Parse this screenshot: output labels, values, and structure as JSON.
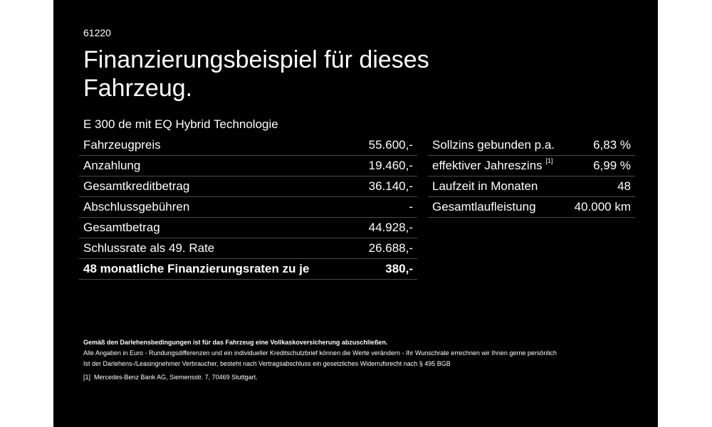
{
  "header": {
    "code": "61220",
    "title": "Finanzierungsbeispiel für dieses Fahrzeug.",
    "subtitle": "E 300 de mit EQ Hybrid Technologie"
  },
  "left_table": [
    {
      "label": "Fahrzeugpreis",
      "value": "55.600,-"
    },
    {
      "label": "Anzahlung",
      "value": "19.460,-"
    },
    {
      "label": "Gesamtkreditbetrag",
      "value": "36.140,-"
    },
    {
      "label": "Abschlussgebühren",
      "value": "-"
    },
    {
      "label": "Gesamtbetrag",
      "value": "44.928,-"
    },
    {
      "label": "Schlussrate als 49. Rate",
      "value": "26.688,-"
    },
    {
      "label": "48 monatliche Finanzierungsraten zu je",
      "value": "380,-"
    }
  ],
  "right_table": [
    {
      "label": "Sollzins gebunden p.a.",
      "value": "6,83 %"
    },
    {
      "label": "effektiver Jahreszins",
      "footnote": "[1]",
      "value": "6,99 %"
    },
    {
      "label": "Laufzeit in Monaten",
      "value": "48"
    },
    {
      "label": "Gesamtlaufleistung",
      "value": "40.000 km"
    }
  ],
  "notes": {
    "bold_line": "Gemäß den Darlehensbedingungen ist für das Fahrzeug eine Vollkaskoversicherung abzuschließen.",
    "line1": "Alle Angaben in Euro - Rundungsdifferenzen und ein individueller Kreditschutzbrief können die Werte verändern - Ihr Wunschrate errechnen wir Ihnen gerne persönlich",
    "line2": "Ist der Darlehens-/Leasingnehmer Verbraucher, besteht nach Vertragsabschluss ein gesetzliches Widerrufsrecht nach § 495 BGB",
    "footnote_marker": "[1]",
    "footnote_text": "Mercedes-Benz Bank AG, Siemensstr. 7, 70469 Stuttgart."
  },
  "colors": {
    "background": "#000000",
    "text": "#ffffff",
    "divider": "#4a4a4a"
  }
}
